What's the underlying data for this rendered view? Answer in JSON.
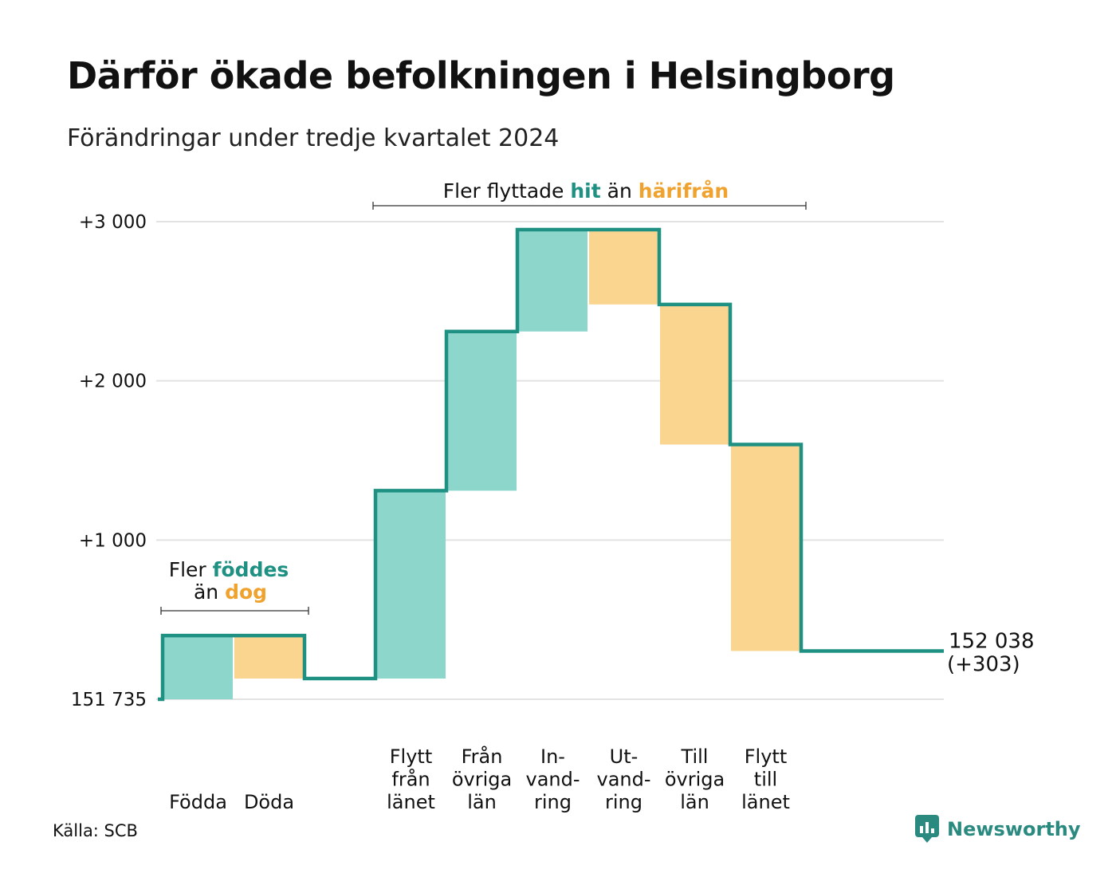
{
  "title": "Därför ökade befolkningen i Helsingborg",
  "subtitle": "Förändringar under tredje kvartalet 2024",
  "source": "Källa: SCB",
  "brand": "Newsworthy",
  "colors": {
    "increase_fill": "#8dd6cc",
    "decrease_fill": "#fad590",
    "line": "#1f9183",
    "teal_text": "#1f9183",
    "orange_text": "#f0a22e",
    "grid": "#e2e2e2"
  },
  "annotations": {
    "births": {
      "line1_prefix": "Fler ",
      "line1_highlight": "föddes",
      "line2_prefix": "än ",
      "line2_highlight": "dog"
    },
    "migration": {
      "prefix": "Fler flyttade ",
      "highlight1": "hit",
      "middle": " än ",
      "highlight2": "härifrån"
    }
  },
  "end_label": {
    "value": "152 038",
    "change": "(+303)"
  },
  "chart_data": {
    "type": "waterfall",
    "title": "Därför ökade befolkningen i Helsingborg",
    "subtitle": "Förändringar under tredje kvartalet 2024",
    "start_population": 151735,
    "end_population": 152038,
    "net_change": 303,
    "y_ticks": [
      {
        "value": 0,
        "label": "151 735"
      },
      {
        "value": 1000,
        "label": "+1 000"
      },
      {
        "value": 2000,
        "label": "+2 000"
      },
      {
        "value": 3000,
        "label": "+3 000"
      }
    ],
    "ylim": [
      0,
      3000
    ],
    "grid": true,
    "steps": [
      {
        "label": [
          "Födda"
        ],
        "change": 400,
        "kind": "increase"
      },
      {
        "label": [
          "Döda"
        ],
        "change": -270,
        "kind": "decrease"
      },
      {
        "label": [],
        "change": 0,
        "kind": "gap"
      },
      {
        "label": [
          "Flytt",
          "från",
          "länet"
        ],
        "change": 1180,
        "kind": "increase"
      },
      {
        "label": [
          "Från",
          "övriga",
          "län"
        ],
        "change": 1000,
        "kind": "increase"
      },
      {
        "label": [
          "In-",
          "vand-",
          "ring"
        ],
        "change": 640,
        "kind": "increase"
      },
      {
        "label": [
          "Ut-",
          "vand-",
          "ring"
        ],
        "change": -470,
        "kind": "decrease"
      },
      {
        "label": [
          "Till",
          "övriga",
          "län"
        ],
        "change": -880,
        "kind": "decrease"
      },
      {
        "label": [
          "Flytt",
          "till",
          "länet"
        ],
        "change": -1297,
        "kind": "decrease"
      }
    ]
  }
}
